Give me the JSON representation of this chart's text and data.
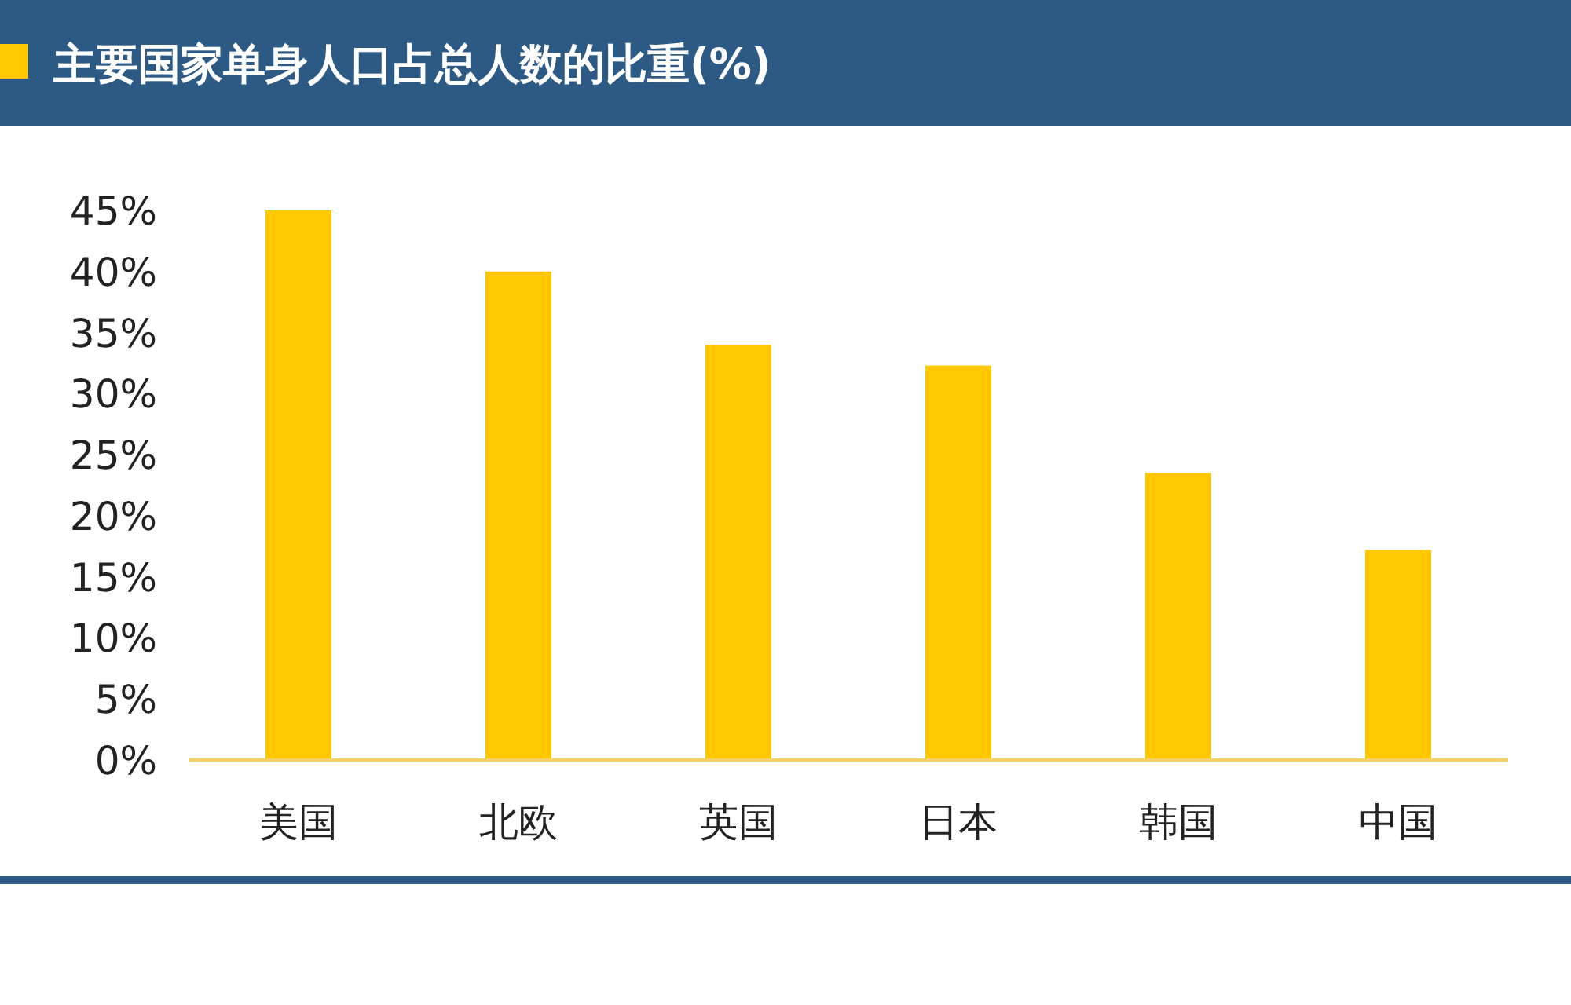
{
  "chart_data": {
    "type": "bar",
    "title": "主要国家单身人口占总人数的比重(%)",
    "categories": [
      "美国",
      "北欧",
      "英国",
      "日本",
      "韩国",
      "中国"
    ],
    "values": [
      45,
      40,
      34,
      32.3,
      23.5,
      17.2
    ],
    "color": "#ffc800",
    "ylim": [
      0,
      45
    ],
    "yticks": [
      {
        "value": 0,
        "label": "0%"
      },
      {
        "value": 5,
        "label": "5%"
      },
      {
        "value": 10,
        "label": "10%"
      },
      {
        "value": 15,
        "label": "15%"
      },
      {
        "value": 20,
        "label": "20%"
      },
      {
        "value": 25,
        "label": "25%"
      },
      {
        "value": 30,
        "label": "30%"
      },
      {
        "value": 35,
        "label": "35%"
      },
      {
        "value": 40,
        "label": "40%"
      },
      {
        "value": 45,
        "label": "45%"
      }
    ]
  }
}
